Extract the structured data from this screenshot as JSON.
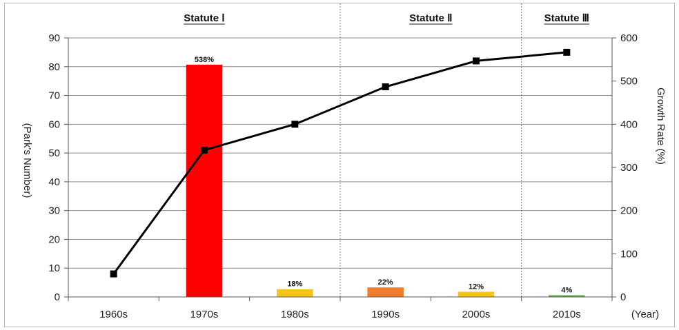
{
  "chart_data": {
    "type": "bar",
    "categories": [
      "1960s",
      "1970s",
      "1980s",
      "1990s",
      "2000s",
      "2010s"
    ],
    "xlabel": "(Year)",
    "ylabel": "(Park's Number)",
    "y2label": "Growth Rate (%)",
    "ylim": [
      0,
      90
    ],
    "yticks": [
      "0",
      "10",
      "20",
      "30",
      "40",
      "50",
      "60",
      "70",
      "80",
      "90"
    ],
    "y2lim": [
      0,
      600
    ],
    "y2ticks": [
      "0",
      "100",
      "200",
      "300",
      "400",
      "500",
      "600"
    ],
    "grid": true,
    "series": [
      {
        "type": "line",
        "axis": "left",
        "values": [
          8,
          51,
          60,
          73,
          82,
          85
        ],
        "color": "#000000"
      },
      {
        "type": "bar",
        "axis": "right",
        "values": [
          null,
          538,
          18,
          22,
          12,
          4
        ],
        "labels": [
          "",
          "538%",
          "18%",
          "22%",
          "12%",
          "4%"
        ],
        "colors": [
          "",
          "#ff0000",
          "#f5c518",
          "#f07c2c",
          "#f5c518",
          "#6aa84f"
        ]
      }
    ],
    "annotations": [
      {
        "text": "Statute Ⅰ",
        "span": [
          "1960s",
          "1980s"
        ]
      },
      {
        "text": "Statute Ⅱ",
        "span": [
          "1990s",
          "2000s"
        ]
      },
      {
        "text": "Statute Ⅲ",
        "span": [
          "2010s",
          "2010s"
        ]
      }
    ]
  }
}
